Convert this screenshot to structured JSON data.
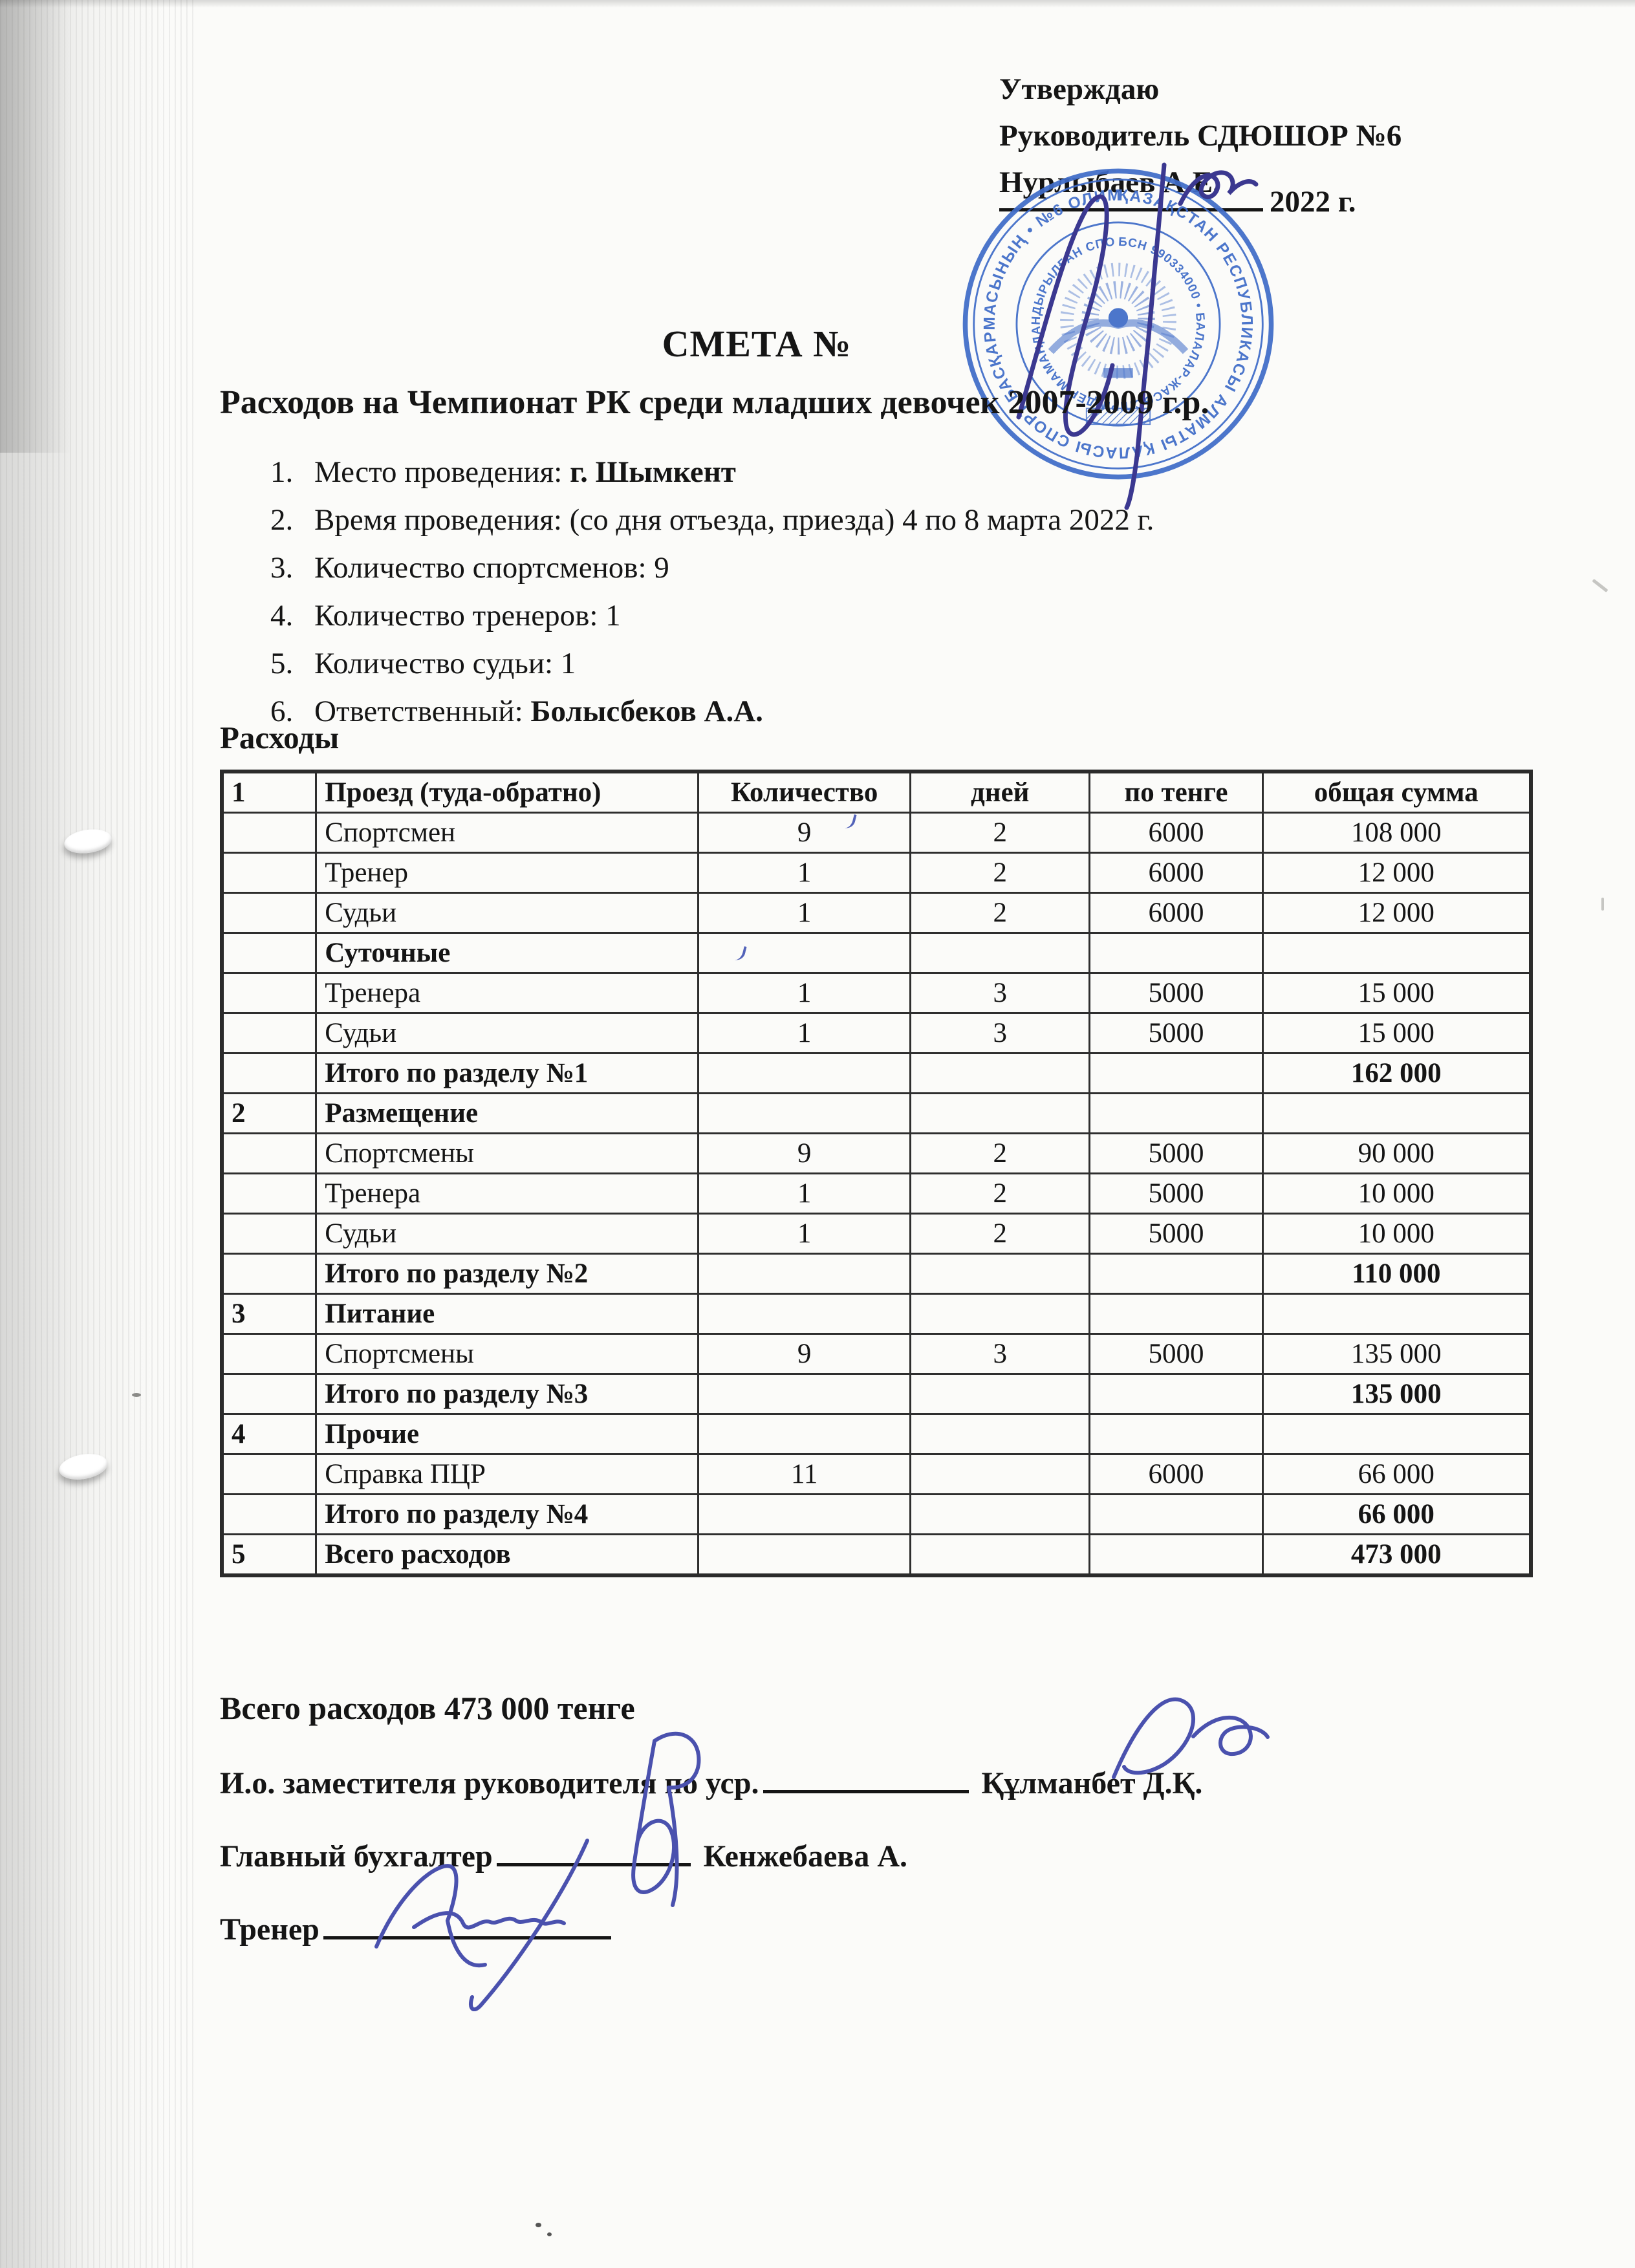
{
  "approval": {
    "line1": "Утверждаю",
    "line2": "Руководитель СДЮШОР №6",
    "line3": "Нурлыбаев А.Е.",
    "year_suffix": "2022 г."
  },
  "stamp": {
    "color": "#3f6cc8",
    "ring_text_outer": "ҚАЗАҚСТАН РЕСПУБЛИКАСЫ АЛМАТЫ ҚАЛАСЫ СПОРТ БАСҚАРМАСЫНЫҢ • №6 ОЛИМПИАДАЛЫҚ РЕЗЕРВТЕГІ КОММУНАЛДЫҚ ҚАЗЫНАЛЫҚ •",
    "ring_text_inner": "БСН 990334000 • БАЛАЛАР-ЖАСӨСПІРІМДЕР МАМАНДАНДЫРЫЛҒАН СПОРТ МЕКТЕБІ • КӘСІПОРНЫ"
  },
  "title": "СМЕТА №",
  "subtitle": "Расходов на Чемпионат РК среди младших девочек 2007-2009 г.р.",
  "details": [
    {
      "num": "1.",
      "text": "Место проведения: ",
      "bold": "г. Шымкент"
    },
    {
      "num": "2.",
      "text": "Время проведения: (со дня отъезда, приезда) 4 по 8 марта 2022 г.",
      "bold": ""
    },
    {
      "num": "3.",
      "text": "Количество спортсменов: 9",
      "bold": ""
    },
    {
      "num": "4.",
      "text": "Количество тренеров: 1",
      "bold": ""
    },
    {
      "num": "5.",
      "text": "Количество судьи: 1",
      "bold": ""
    },
    {
      "num": "6.",
      "text": "Ответственный: ",
      "bold": "Болысбеков А.А."
    }
  ],
  "expenses_heading": "Расходы",
  "table": {
    "rows": [
      {
        "num": "1",
        "name": "Проезд (туда-обратно)",
        "qty": "Количество",
        "days": "дней",
        "rate": "по тенге",
        "sum": "общая сумма",
        "bold": true
      },
      {
        "num": "",
        "name": "Спортсмен",
        "qty": "9",
        "days": "2",
        "rate": "6000",
        "sum": "108 000",
        "bold": false
      },
      {
        "num": "",
        "name": "Тренер",
        "qty": "1",
        "days": "2",
        "rate": "6000",
        "sum": "12 000",
        "bold": false
      },
      {
        "num": "",
        "name": "Судьи",
        "qty": "1",
        "days": "2",
        "rate": "6000",
        "sum": "12 000",
        "bold": false
      },
      {
        "num": "",
        "name": "Суточные",
        "qty": "",
        "days": "",
        "rate": "",
        "sum": "",
        "bold": true
      },
      {
        "num": "",
        "name": "Тренера",
        "qty": "1",
        "days": "3",
        "rate": "5000",
        "sum": "15 000",
        "bold": false
      },
      {
        "num": "",
        "name": "Судьи",
        "qty": "1",
        "days": "3",
        "rate": "5000",
        "sum": "15 000",
        "bold": false
      },
      {
        "num": "",
        "name": "Итого по разделу №1",
        "qty": "",
        "days": "",
        "rate": "",
        "sum": "162 000",
        "bold": true
      },
      {
        "num": "2",
        "name": "Размещение",
        "qty": "",
        "days": "",
        "rate": "",
        "sum": "",
        "bold": true
      },
      {
        "num": "",
        "name": "Спортсмены",
        "qty": "9",
        "days": "2",
        "rate": "5000",
        "sum": "90 000",
        "bold": false
      },
      {
        "num": "",
        "name": "Тренера",
        "qty": "1",
        "days": "2",
        "rate": "5000",
        "sum": "10 000",
        "bold": false
      },
      {
        "num": "",
        "name": "Судьи",
        "qty": "1",
        "days": "2",
        "rate": "5000",
        "sum": "10 000",
        "bold": false
      },
      {
        "num": "",
        "name": "Итого по разделу №2",
        "qty": "",
        "days": "",
        "rate": "",
        "sum": "110 000",
        "bold": true
      },
      {
        "num": "3",
        "name": "Питание",
        "qty": "",
        "days": "",
        "rate": "",
        "sum": "",
        "bold": true
      },
      {
        "num": "",
        "name": "Спортсмены",
        "qty": "9",
        "days": "3",
        "rate": "5000",
        "sum": "135 000",
        "bold": false
      },
      {
        "num": "",
        "name": "Итого по разделу №3",
        "qty": "",
        "days": "",
        "rate": "",
        "sum": "135 000",
        "bold": true
      },
      {
        "num": "4",
        "name": "Прочие",
        "qty": "",
        "days": "",
        "rate": "",
        "sum": "",
        "bold": true
      },
      {
        "num": "",
        "name": "Справка ПЦР",
        "qty": "11",
        "days": "",
        "rate": "6000",
        "sum": "66 000",
        "bold": false
      },
      {
        "num": "",
        "name": "Итого по разделу №4",
        "qty": "",
        "days": "",
        "rate": "",
        "sum": "66 000",
        "bold": true
      },
      {
        "num": "5",
        "name": "Всего расходов",
        "qty": "",
        "days": "",
        "rate": "",
        "sum": "473 000",
        "bold": true
      }
    ]
  },
  "total_line": "Всего расходов 473 000 тенге",
  "signatures": [
    {
      "label": "И.о. заместителя руководителя  по уср.",
      "name": "Құлманбет Д.Қ."
    },
    {
      "label": "Главный бухгалтер",
      "name": "Кенжебаева А."
    },
    {
      "label": "Тренер",
      "name": ""
    }
  ]
}
